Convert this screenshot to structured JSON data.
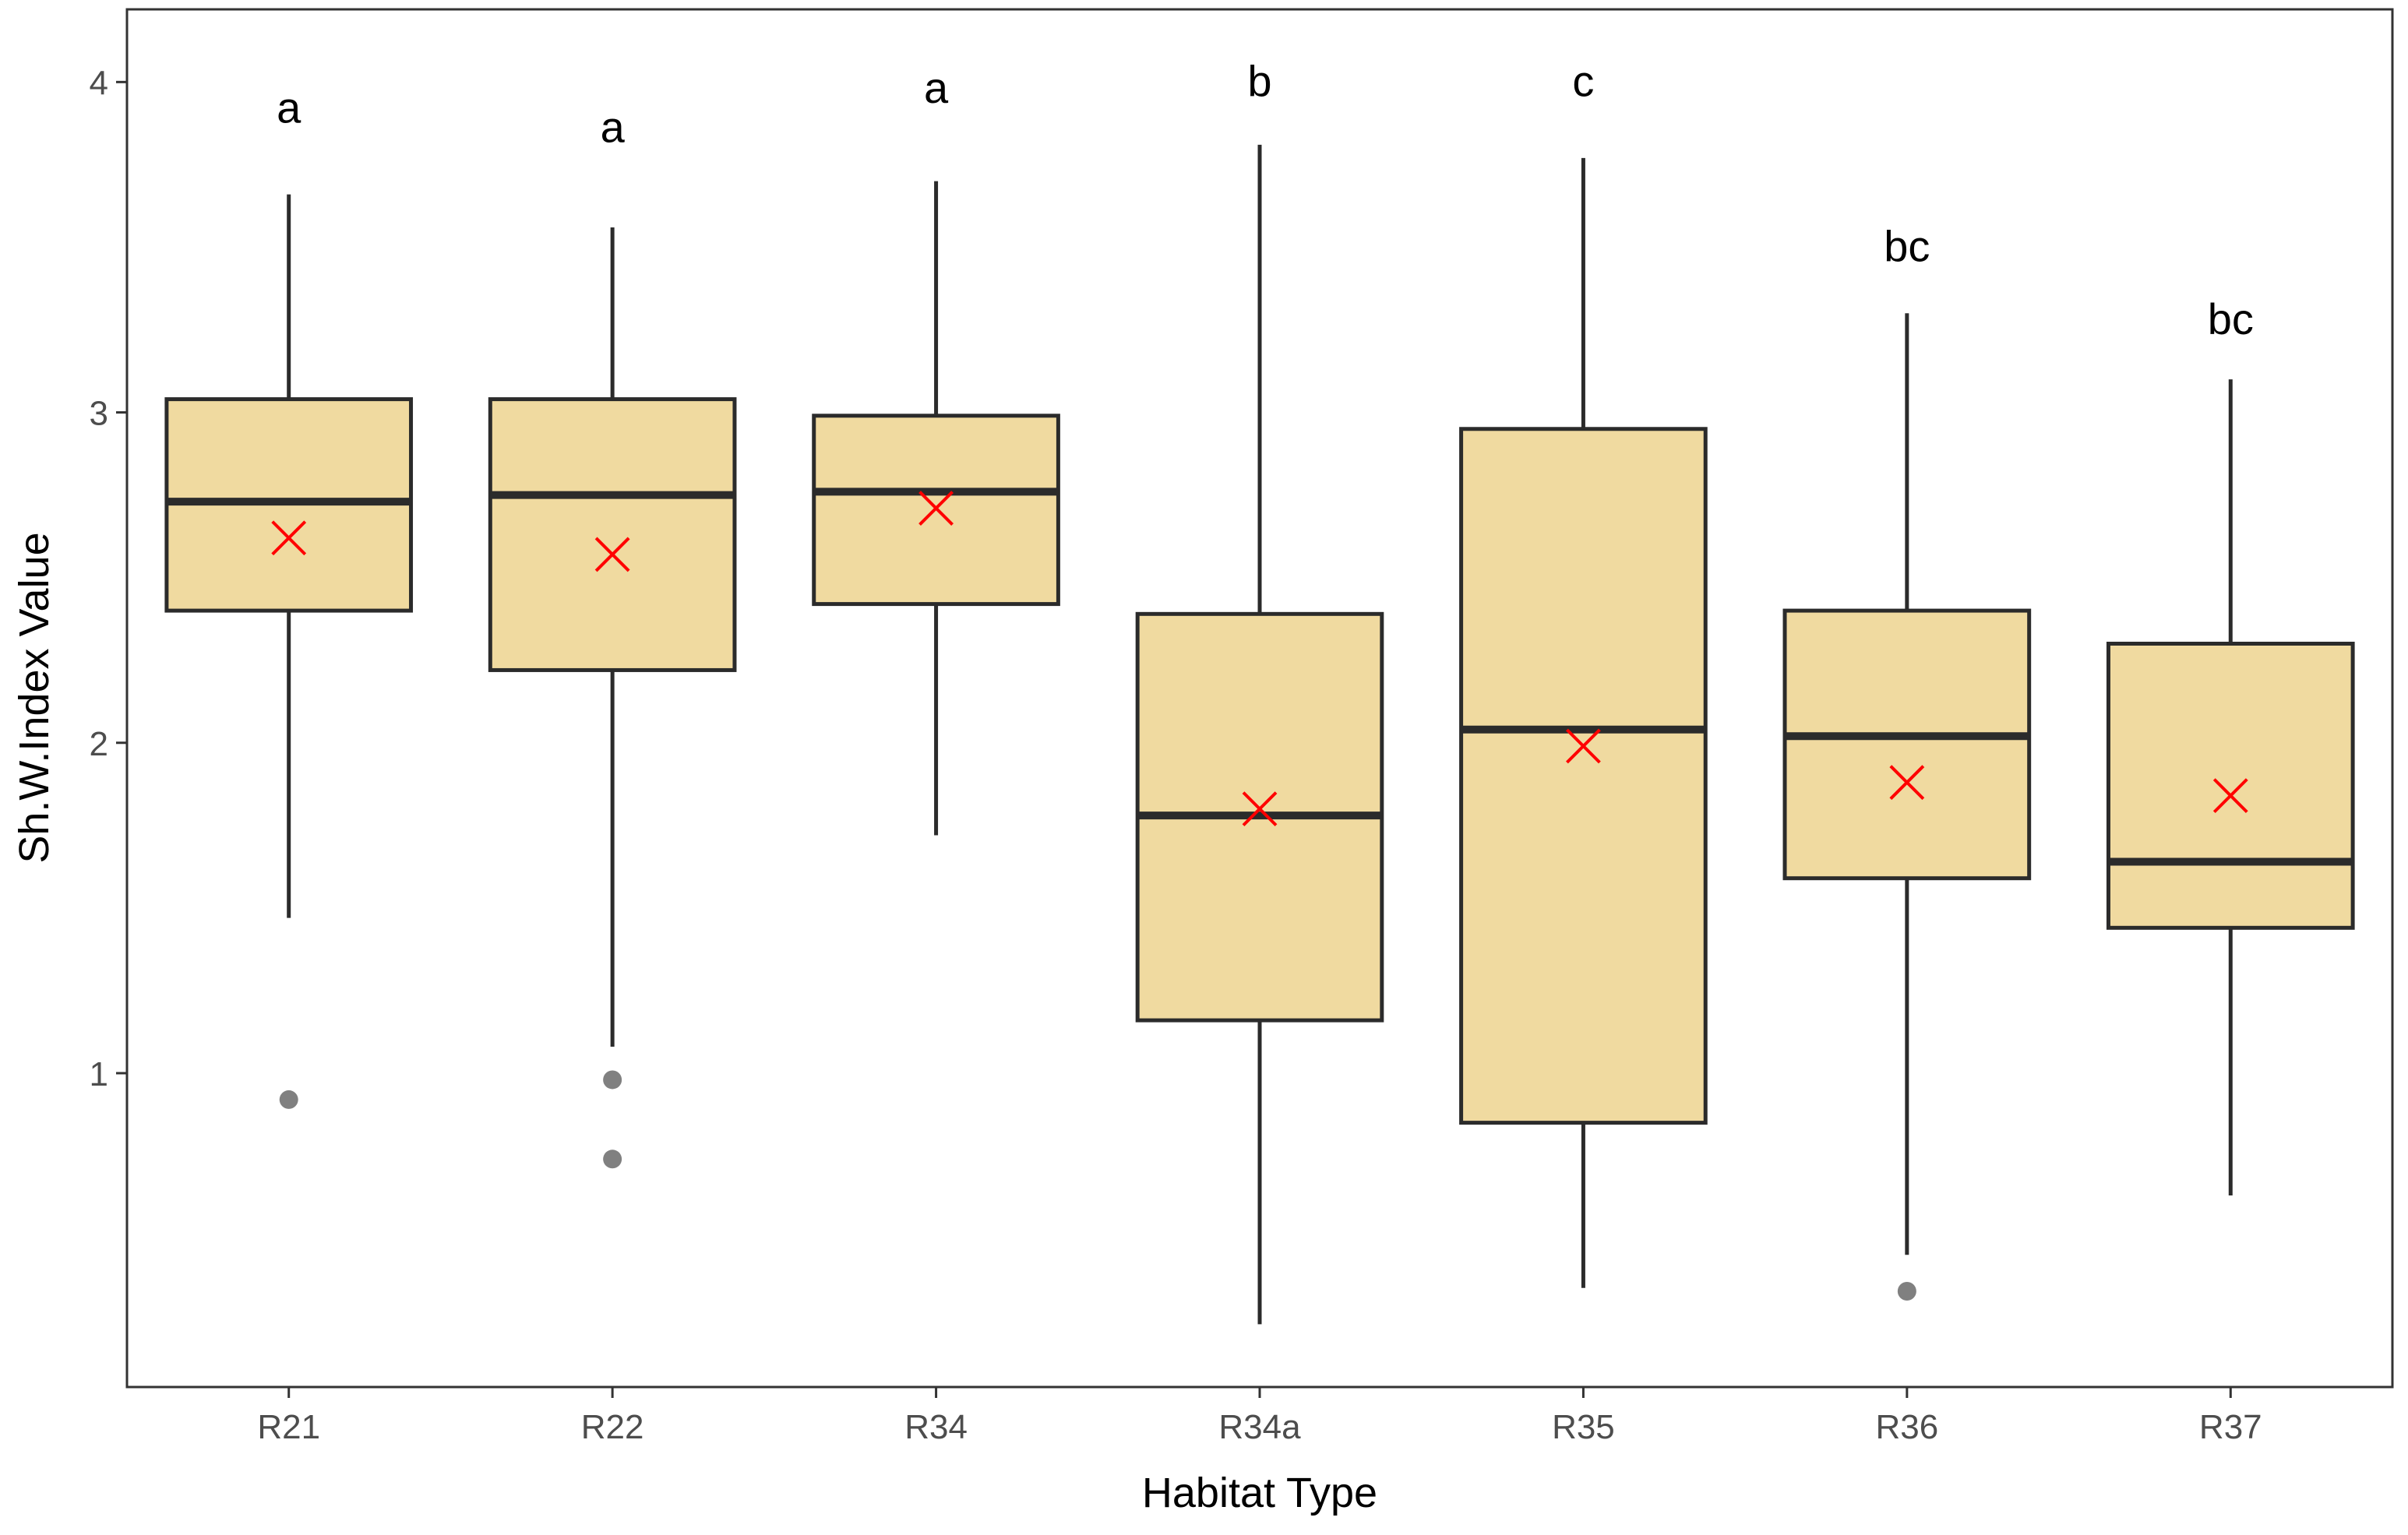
{
  "chart_data": {
    "type": "boxplot",
    "title": "",
    "xlabel": "Habitat Type",
    "ylabel": "Sh.W.Index Value",
    "ylim": [
      0.05,
      4.22
    ],
    "yticks": [
      1,
      2,
      3,
      4
    ],
    "ytick_labels": [
      "1",
      "2",
      "3",
      "4"
    ],
    "grid": false,
    "legend": "none",
    "colors": {
      "box_fill": "#F0DAA0",
      "box_stroke": "#2b2b2b",
      "mean_marker": "#ff0000",
      "outlier": "#808080",
      "frame": "#333333",
      "tick_label": "#4d4d4d",
      "annotation": "#000000"
    },
    "categories": [
      "R21",
      "R22",
      "R34",
      "R34a",
      "R35",
      "R36",
      "R37"
    ],
    "boxes": [
      {
        "category": "R21",
        "whisker_low": 1.47,
        "q1": 2.4,
        "median": 2.73,
        "q3": 3.04,
        "whisker_high": 3.66,
        "mean": 2.62,
        "outliers": [
          0.92
        ],
        "letter": "a",
        "letter_y": 3.92
      },
      {
        "category": "R22",
        "whisker_low": 1.08,
        "q1": 2.22,
        "median": 2.75,
        "q3": 3.04,
        "whisker_high": 3.56,
        "mean": 2.57,
        "outliers": [
          0.98,
          0.74
        ],
        "letter": "a",
        "letter_y": 3.86
      },
      {
        "category": "R34",
        "whisker_low": 1.72,
        "q1": 2.42,
        "median": 2.76,
        "q3": 2.99,
        "whisker_high": 3.7,
        "mean": 2.71,
        "outliers": [],
        "letter": "a",
        "letter_y": 3.98
      },
      {
        "category": "R34a",
        "whisker_low": 0.24,
        "q1": 1.16,
        "median": 1.78,
        "q3": 2.39,
        "whisker_high": 3.81,
        "mean": 1.8,
        "outliers": [],
        "letter": "b",
        "letter_y": 4.0
      },
      {
        "category": "R35",
        "whisker_low": 0.35,
        "q1": 0.85,
        "median": 2.04,
        "q3": 2.95,
        "whisker_high": 3.77,
        "mean": 1.99,
        "outliers": [],
        "letter": "c",
        "letter_y": 4.0
      },
      {
        "category": "R36",
        "whisker_low": 0.45,
        "q1": 1.59,
        "median": 2.02,
        "q3": 2.4,
        "whisker_high": 3.3,
        "mean": 1.88,
        "outliers": [
          0.34
        ],
        "letter": "bc",
        "letter_y": 3.5
      },
      {
        "category": "R37",
        "whisker_low": 0.63,
        "q1": 1.44,
        "median": 1.64,
        "q3": 2.3,
        "whisker_high": 3.1,
        "mean": 1.84,
        "outliers": [],
        "letter": "bc",
        "letter_y": 3.28
      }
    ]
  }
}
